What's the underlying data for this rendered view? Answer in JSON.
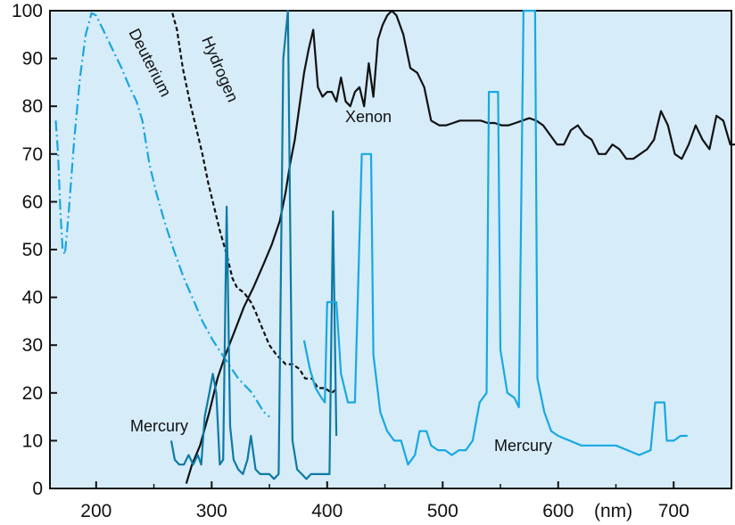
{
  "chart_data": {
    "type": "line",
    "title": "",
    "xlabel": "(nm)",
    "ylabel": "",
    "xlim": [
      160,
      750
    ],
    "ylim": [
      0,
      100
    ],
    "x_ticks": [
      200,
      300,
      400,
      500,
      600,
      700
    ],
    "y_ticks": [
      0,
      10,
      20,
      30,
      40,
      50,
      60,
      70,
      80,
      90,
      100
    ],
    "grid": false,
    "background_color": "#d6ecf9",
    "series": [
      {
        "name": "Deuterium",
        "color": "#1aa6dc",
        "style": "dash-dot",
        "points": [
          [
            165,
            77
          ],
          [
            167,
            70
          ],
          [
            169,
            58
          ],
          [
            171,
            50
          ],
          [
            173,
            49
          ],
          [
            176,
            57
          ],
          [
            181,
            73
          ],
          [
            186,
            86
          ],
          [
            191,
            95
          ],
          [
            196,
            99.5
          ],
          [
            200,
            99
          ],
          [
            206,
            96
          ],
          [
            214,
            92
          ],
          [
            222,
            88
          ],
          [
            229,
            84
          ],
          [
            235,
            81
          ],
          [
            240,
            77
          ],
          [
            246,
            68
          ],
          [
            252,
            62
          ],
          [
            259,
            56
          ],
          [
            267,
            50
          ],
          [
            276,
            44
          ],
          [
            285,
            39
          ],
          [
            292,
            35
          ],
          [
            301,
            31
          ],
          [
            312,
            27
          ],
          [
            323,
            23
          ],
          [
            335,
            20
          ],
          [
            340,
            18
          ],
          [
            345,
            16
          ],
          [
            350,
            15
          ]
        ]
      },
      {
        "name": "Hydrogen",
        "color": "#111111",
        "style": "dashed",
        "points": [
          [
            266,
            99.5
          ],
          [
            270,
            96
          ],
          [
            275,
            88
          ],
          [
            281,
            81
          ],
          [
            287,
            75
          ],
          [
            292,
            70
          ],
          [
            297,
            64
          ],
          [
            302,
            59
          ],
          [
            307,
            54
          ],
          [
            313,
            49
          ],
          [
            318,
            44
          ],
          [
            322,
            42
          ],
          [
            328,
            41
          ],
          [
            334,
            39
          ],
          [
            338,
            37
          ],
          [
            343,
            34
          ],
          [
            350,
            30
          ],
          [
            356,
            28
          ],
          [
            364,
            26
          ],
          [
            370,
            26
          ],
          [
            376,
            25
          ],
          [
            381,
            23
          ],
          [
            387,
            23
          ],
          [
            392,
            21
          ],
          [
            398,
            21
          ],
          [
            404,
            20
          ],
          [
            409,
            21
          ]
        ]
      },
      {
        "name": "Xenon",
        "color": "#111111",
        "style": "solid",
        "points": [
          [
            278,
            1
          ],
          [
            283,
            5
          ],
          [
            290,
            9
          ],
          [
            298,
            16
          ],
          [
            305,
            23
          ],
          [
            312,
            28
          ],
          [
            320,
            33
          ],
          [
            328,
            38
          ],
          [
            336,
            42
          ],
          [
            345,
            47
          ],
          [
            352,
            51
          ],
          [
            359,
            56
          ],
          [
            364,
            62
          ],
          [
            368,
            68
          ],
          [
            372,
            73
          ],
          [
            376,
            80
          ],
          [
            380,
            87
          ],
          [
            384,
            92
          ],
          [
            388,
            96
          ],
          [
            392,
            84
          ],
          [
            396,
            82
          ],
          [
            400,
            83
          ],
          [
            404,
            83
          ],
          [
            408,
            81
          ],
          [
            412,
            86
          ],
          [
            416,
            81
          ],
          [
            420,
            80
          ],
          [
            424,
            83
          ],
          [
            428,
            84
          ],
          [
            432,
            80
          ],
          [
            436,
            89
          ],
          [
            440,
            82
          ],
          [
            444,
            94
          ],
          [
            448,
            97
          ],
          [
            452,
            99
          ],
          [
            456,
            100
          ],
          [
            460,
            99
          ],
          [
            466,
            95
          ],
          [
            472,
            88
          ],
          [
            478,
            87
          ],
          [
            484,
            84
          ],
          [
            490,
            77
          ],
          [
            497,
            76
          ],
          [
            503,
            76
          ],
          [
            509,
            76.5
          ],
          [
            515,
            77
          ],
          [
            521,
            77
          ],
          [
            527,
            77
          ],
          [
            533,
            77
          ],
          [
            539,
            76.5
          ],
          [
            545,
            76.5
          ],
          [
            551,
            76
          ],
          [
            557,
            76
          ],
          [
            563,
            76.5
          ],
          [
            569,
            77
          ],
          [
            575,
            77.5
          ],
          [
            581,
            77
          ],
          [
            587,
            76
          ],
          [
            593,
            74
          ],
          [
            599,
            72
          ],
          [
            605,
            72
          ],
          [
            611,
            75
          ],
          [
            617,
            76
          ],
          [
            623,
            74
          ],
          [
            629,
            73
          ],
          [
            635,
            70
          ],
          [
            641,
            70
          ],
          [
            647,
            72
          ],
          [
            653,
            71
          ],
          [
            659,
            69
          ],
          [
            665,
            69
          ],
          [
            671,
            70
          ],
          [
            677,
            71
          ],
          [
            683,
            73
          ],
          [
            689,
            79
          ],
          [
            695,
            76
          ],
          [
            701,
            70
          ],
          [
            707,
            69
          ],
          [
            713,
            72
          ],
          [
            719,
            76
          ],
          [
            725,
            73
          ],
          [
            731,
            71
          ],
          [
            737,
            78
          ],
          [
            743,
            77
          ],
          [
            749,
            72
          ],
          [
            755,
            72
          ],
          [
            759,
            81
          ]
        ]
      },
      {
        "name": "Mercury",
        "color": "#0e7aa3",
        "style": "solid",
        "points": [
          [
            265,
            10
          ],
          [
            268,
            6
          ],
          [
            272,
            5
          ],
          [
            276,
            5
          ],
          [
            280,
            7
          ],
          [
            284,
            5
          ],
          [
            288,
            7
          ],
          [
            291,
            5
          ],
          [
            294,
            15
          ],
          [
            298,
            20
          ],
          [
            301,
            24
          ],
          [
            304,
            20
          ],
          [
            307,
            5
          ],
          [
            310,
            6
          ],
          [
            313,
            59
          ],
          [
            316,
            13
          ],
          [
            319,
            6
          ],
          [
            323,
            4
          ],
          [
            327,
            3
          ],
          [
            331,
            6
          ],
          [
            334,
            11
          ],
          [
            338,
            4
          ],
          [
            342,
            3
          ],
          [
            346,
            3
          ],
          [
            350,
            3
          ],
          [
            354,
            2
          ],
          [
            358,
            3
          ],
          [
            362,
            90
          ],
          [
            366,
            100
          ],
          [
            370,
            10
          ],
          [
            374,
            4
          ],
          [
            378,
            3
          ],
          [
            382,
            2
          ],
          [
            386,
            3
          ],
          [
            390,
            3
          ],
          [
            394,
            3
          ],
          [
            398,
            3
          ],
          [
            402,
            3
          ],
          [
            405,
            58
          ],
          [
            408,
            11
          ]
        ]
      },
      {
        "name": "Mercury",
        "color": "#17a9e1",
        "style": "solid",
        "points": [
          [
            380,
            31
          ],
          [
            385,
            25
          ],
          [
            390,
            21
          ],
          [
            395,
            19
          ],
          [
            398,
            18
          ],
          [
            400,
            39
          ],
          [
            408,
            39
          ],
          [
            412,
            24
          ],
          [
            418,
            18
          ],
          [
            424,
            18
          ],
          [
            430,
            70
          ],
          [
            438,
            70
          ],
          [
            440,
            28
          ],
          [
            446,
            16
          ],
          [
            452,
            12
          ],
          [
            458,
            10
          ],
          [
            464,
            10
          ],
          [
            470,
            5
          ],
          [
            476,
            7
          ],
          [
            480,
            12
          ],
          [
            486,
            12
          ],
          [
            490,
            9
          ],
          [
            496,
            8
          ],
          [
            502,
            8
          ],
          [
            508,
            7
          ],
          [
            514,
            8
          ],
          [
            520,
            8
          ],
          [
            526,
            10
          ],
          [
            532,
            18
          ],
          [
            538,
            20
          ],
          [
            540,
            83
          ],
          [
            548,
            83
          ],
          [
            550,
            29
          ],
          [
            556,
            20
          ],
          [
            562,
            19
          ],
          [
            566,
            17
          ],
          [
            570,
            100
          ],
          [
            580,
            100
          ],
          [
            582,
            23
          ],
          [
            588,
            16
          ],
          [
            594,
            12
          ],
          [
            600,
            11
          ],
          [
            610,
            10
          ],
          [
            620,
            9
          ],
          [
            630,
            9
          ],
          [
            640,
            9
          ],
          [
            650,
            9
          ],
          [
            660,
            8
          ],
          [
            670,
            7
          ],
          [
            680,
            8
          ],
          [
            684,
            18
          ],
          [
            692,
            18
          ],
          [
            694,
            10
          ],
          [
            700,
            10
          ],
          [
            706,
            11
          ],
          [
            712,
            11
          ]
        ]
      }
    ],
    "annotations": [
      "Deuterium",
      "Hydrogen",
      "Xenon",
      "Mercury",
      "Mercury"
    ]
  }
}
